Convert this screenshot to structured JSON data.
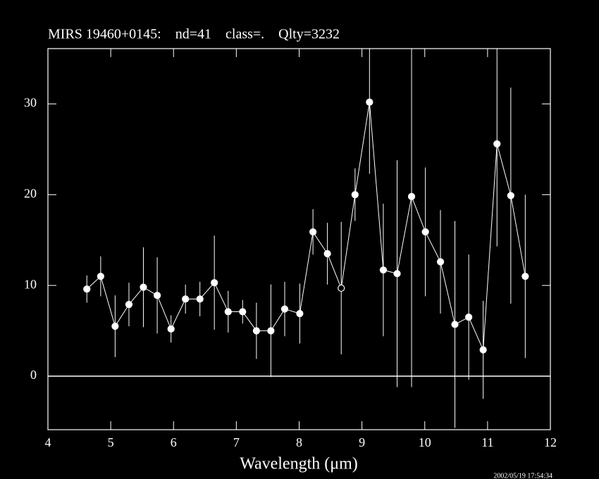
{
  "chart_data": {
    "type": "errorbar",
    "title": "MIRS 19460+0145:    nd=41    class=.    Qlty=3232",
    "xlabel": "Wavelength (μm)",
    "timestamp": "2002/05/19 17:54:34",
    "x": [
      4.62,
      4.84,
      5.07,
      5.29,
      5.52,
      5.74,
      5.96,
      6.19,
      6.42,
      6.65,
      6.87,
      7.1,
      7.32,
      7.55,
      7.77,
      8.01,
      8.22,
      8.45,
      8.67,
      8.89,
      9.12,
      9.34,
      9.56,
      9.79,
      10.01,
      10.25,
      10.48,
      10.7,
      10.93,
      11.15,
      11.37,
      11.6
    ],
    "values": [
      9.6,
      11.0,
      5.5,
      7.9,
      9.8,
      8.9,
      5.2,
      8.5,
      8.5,
      10.3,
      7.1,
      7.1,
      5.0,
      5.0,
      7.4,
      6.9,
      15.9,
      13.5,
      9.7,
      20.0,
      30.2,
      11.7,
      11.3,
      19.8,
      15.9,
      12.6,
      5.7,
      6.5,
      2.9,
      25.6,
      19.9,
      11.0
    ],
    "errors": [
      1.5,
      2.2,
      3.4,
      2.4,
      4.4,
      4.2,
      1.5,
      1.6,
      1.9,
      5.2,
      2.3,
      1.3,
      3.1,
      5.1,
      3.0,
      3.3,
      2.5,
      3.4,
      7.3,
      2.9,
      7.9,
      7.3,
      12.5,
      21.0,
      7.1,
      5.7,
      11.4,
      6.9,
      5.4,
      11.3,
      11.9,
      9.0
    ],
    "filled": [
      true,
      true,
      true,
      true,
      true,
      true,
      true,
      true,
      true,
      true,
      true,
      true,
      true,
      true,
      true,
      true,
      true,
      true,
      false,
      true,
      true,
      true,
      true,
      true,
      true,
      true,
      true,
      true,
      true,
      true,
      true,
      true
    ],
    "color": "#ffffff",
    "xlim": [
      4,
      12
    ],
    "ylim": [
      -5.9,
      36.1
    ],
    "xticks": [
      4,
      5,
      6,
      7,
      8,
      9,
      10,
      11,
      12
    ],
    "yticks": [
      0,
      10,
      20,
      30
    ],
    "zero_line": 0
  }
}
